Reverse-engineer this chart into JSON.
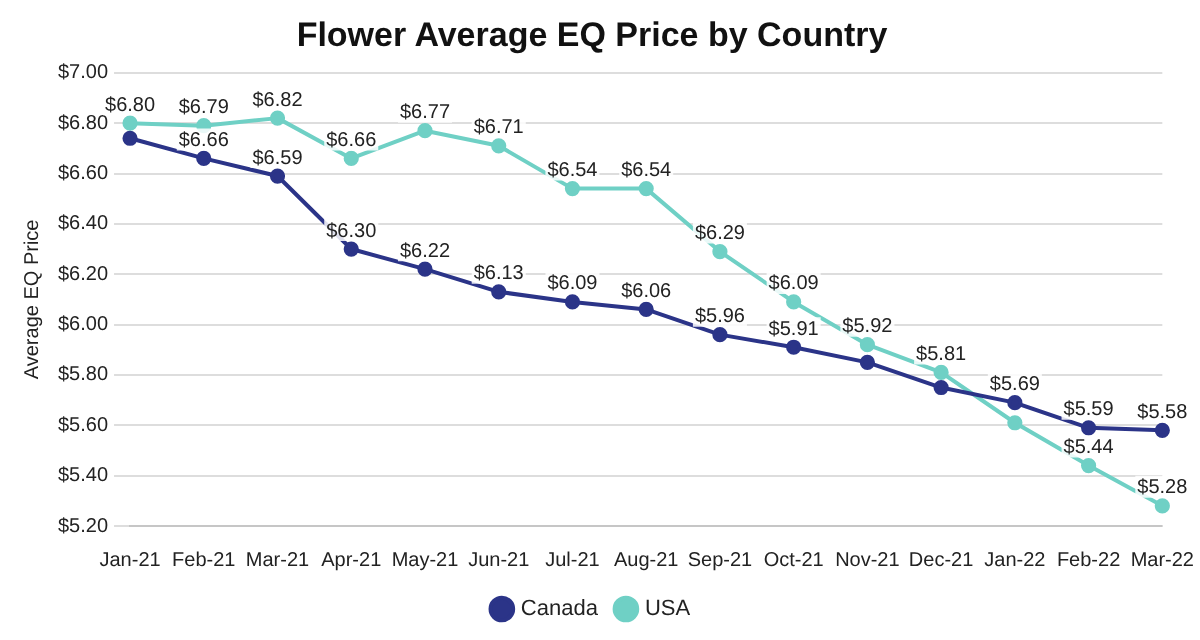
{
  "chart_data": {
    "type": "line",
    "title": "Flower Average EQ Price by Country",
    "ylabel": "Average EQ Price",
    "categories": [
      "Jan-21",
      "Feb-21",
      "Mar-21",
      "Apr-21",
      "May-21",
      "Jun-21",
      "Jul-21",
      "Aug-21",
      "Sep-21",
      "Oct-21",
      "Nov-21",
      "Dec-21",
      "Jan-22",
      "Feb-22",
      "Mar-22"
    ],
    "series": [
      {
        "name": "Canada",
        "color": "#2b3488",
        "values": [
          6.74,
          6.66,
          6.59,
          6.3,
          6.22,
          6.13,
          6.09,
          6.06,
          5.96,
          5.91,
          5.85,
          5.75,
          5.69,
          5.59,
          5.58
        ],
        "value_labels": [
          null,
          "$6.66",
          "$6.59",
          "$6.30",
          "$6.22",
          "$6.13",
          "$6.09",
          "$6.06",
          "$5.96",
          "$5.91",
          null,
          null,
          "$5.69",
          "$5.59",
          "$5.58"
        ]
      },
      {
        "name": "USA",
        "color": "#6fd0c5",
        "values": [
          6.8,
          6.79,
          6.82,
          6.66,
          6.77,
          6.71,
          6.54,
          6.54,
          6.29,
          6.09,
          5.92,
          5.81,
          5.61,
          5.44,
          5.28
        ],
        "value_labels": [
          "$6.80",
          "$6.79",
          "$6.82",
          "$6.66",
          "$6.77",
          "$6.71",
          "$6.54",
          "$6.54",
          "$6.29",
          "$6.09",
          "$5.92",
          "$5.81",
          null,
          "$5.44",
          "$5.28"
        ]
      }
    ],
    "ylim": [
      5.2,
      7.0
    ],
    "yticks": [
      {
        "value": 5.2,
        "label": "$5.20"
      },
      {
        "value": 5.4,
        "label": "$5.40"
      },
      {
        "value": 5.6,
        "label": "$5.60"
      },
      {
        "value": 5.8,
        "label": "$5.80"
      },
      {
        "value": 6.0,
        "label": "$6.00"
      },
      {
        "value": 6.2,
        "label": "$6.20"
      },
      {
        "value": 6.4,
        "label": "$6.40"
      },
      {
        "value": 6.6,
        "label": "$6.60"
      },
      {
        "value": 6.8,
        "label": "$6.80"
      },
      {
        "value": 7.0,
        "label": "$7.00"
      }
    ],
    "grid": "y",
    "legend": "bottom",
    "marker": "circle",
    "line_style": "solid"
  }
}
